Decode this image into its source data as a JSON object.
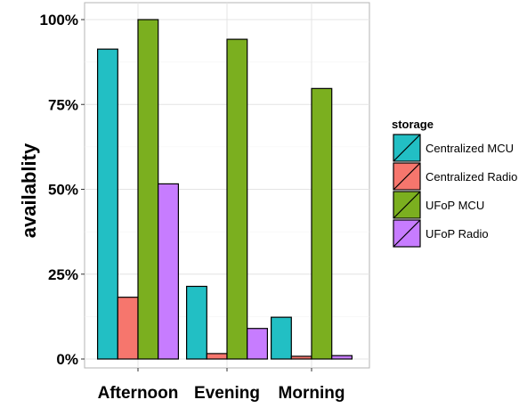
{
  "chart_data": {
    "type": "bar",
    "categories": [
      "Afternoon",
      "Evening",
      "Morning"
    ],
    "series": [
      {
        "name": "Centralized MCU",
        "values": [
          91.3,
          21.4,
          12.3
        ],
        "color": "#22BFC4"
      },
      {
        "name": "Centralized Radio",
        "values": [
          18.2,
          1.6,
          0.8
        ],
        "color": "#F6766D"
      },
      {
        "name": "UFoP MCU",
        "values": [
          100,
          94.2,
          79.7
        ],
        "color": "#7BAF1F"
      },
      {
        "name": "UFoP Radio",
        "values": [
          51.6,
          9.0,
          1.0
        ],
        "color": "#C77CFF"
      }
    ],
    "ylim": [
      0,
      100
    ],
    "yticks": [
      0,
      25,
      50,
      75,
      100
    ],
    "ytick_labels": [
      "0%",
      "25%",
      "50%",
      "75%",
      "100%"
    ],
    "xlabel": "",
    "ylabel": "availablity",
    "legend_title": "storage",
    "legend_position": "right",
    "grid": true
  }
}
